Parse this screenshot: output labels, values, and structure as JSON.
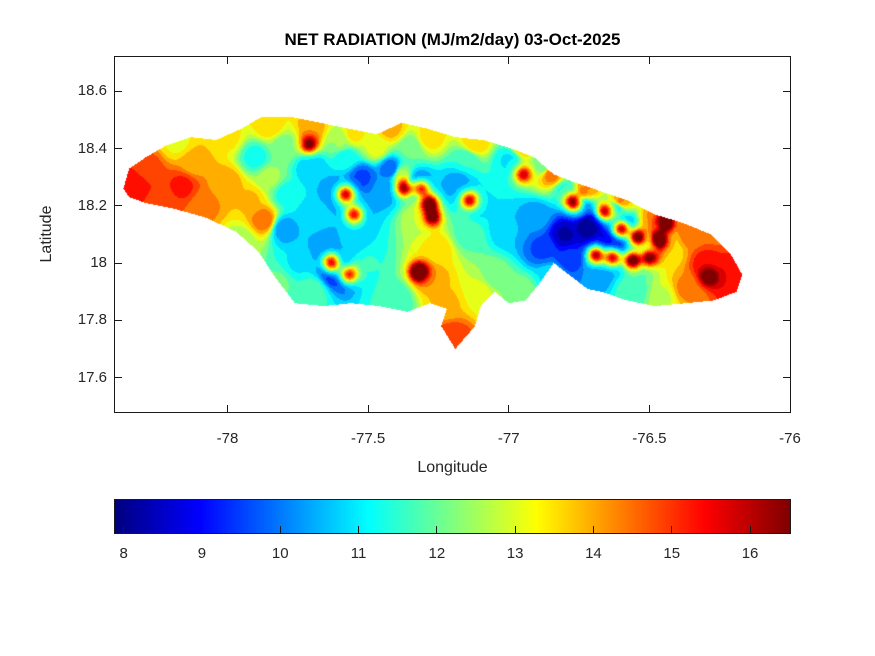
{
  "figure": {
    "background": "#ffffff",
    "axis_color": "#1a1a1a",
    "text_color": "#262626",
    "title_color": "#000000"
  },
  "chart_data": {
    "type": "heatmap",
    "subtype": "filled_contour_map",
    "region": "Jamaica",
    "title": "NET RADIATION (MJ/m2/day) 03-Oct-2025",
    "xlabel": "Longitude",
    "ylabel": "Latitude",
    "xlim": [
      -78.4,
      -76.0
    ],
    "ylim": [
      17.48,
      18.72
    ],
    "grid": false,
    "xticks": [
      {
        "value": -78,
        "label": "-78"
      },
      {
        "value": -77.5,
        "label": "-77.5"
      },
      {
        "value": -77,
        "label": "-77"
      },
      {
        "value": -76.5,
        "label": "-76.5"
      },
      {
        "value": -76,
        "label": "-76"
      }
    ],
    "yticks": [
      {
        "value": 18.6,
        "label": "18.6"
      },
      {
        "value": 18.4,
        "label": "18.4"
      },
      {
        "value": 18.2,
        "label": "18.2"
      },
      {
        "value": 18,
        "label": "18"
      },
      {
        "value": 17.8,
        "label": "17.8"
      },
      {
        "value": 17.6,
        "label": "17.6"
      }
    ],
    "colormap": "jet",
    "color_range": [
      7.89,
      16.51
    ],
    "contour_step": 0.45,
    "colorbar": {
      "orientation": "horizontal",
      "position": "below",
      "ticks": [
        {
          "value": 8,
          "label": "8"
        },
        {
          "value": 9,
          "label": "9"
        },
        {
          "value": 10,
          "label": "10"
        },
        {
          "value": 11,
          "label": "11"
        },
        {
          "value": 12,
          "label": "12"
        },
        {
          "value": 13,
          "label": "13"
        },
        {
          "value": 14,
          "label": "14"
        },
        {
          "value": 15,
          "label": "15"
        },
        {
          "value": 16,
          "label": "16"
        }
      ]
    },
    "coastline": [
      [
        -78.37,
        18.26
      ],
      [
        -78.35,
        18.33
      ],
      [
        -78.29,
        18.37
      ],
      [
        -78.22,
        18.41
      ],
      [
        -78.13,
        18.44
      ],
      [
        -78.04,
        18.43
      ],
      [
        -77.95,
        18.47
      ],
      [
        -77.88,
        18.51
      ],
      [
        -77.77,
        18.51
      ],
      [
        -77.67,
        18.49
      ],
      [
        -77.57,
        18.47
      ],
      [
        -77.47,
        18.45
      ],
      [
        -77.38,
        18.49
      ],
      [
        -77.29,
        18.47
      ],
      [
        -77.19,
        18.44
      ],
      [
        -77.09,
        18.43
      ],
      [
        -76.99,
        18.4
      ],
      [
        -76.91,
        18.37
      ],
      [
        -76.84,
        18.31
      ],
      [
        -76.76,
        18.28
      ],
      [
        -76.67,
        18.25
      ],
      [
        -76.58,
        18.22
      ],
      [
        -76.48,
        18.17
      ],
      [
        -76.38,
        18.14
      ],
      [
        -76.28,
        18.1
      ],
      [
        -76.21,
        18.03
      ],
      [
        -76.17,
        17.96
      ],
      [
        -76.19,
        17.9
      ],
      [
        -76.27,
        17.87
      ],
      [
        -76.37,
        17.86
      ],
      [
        -76.48,
        17.85
      ],
      [
        -76.58,
        17.87
      ],
      [
        -76.67,
        17.9
      ],
      [
        -76.72,
        17.91
      ],
      [
        -76.84,
        18.0
      ],
      [
        -76.89,
        17.93
      ],
      [
        -76.94,
        17.87
      ],
      [
        -77.0,
        17.86
      ],
      [
        -77.05,
        17.9
      ],
      [
        -77.1,
        17.85
      ],
      [
        -77.12,
        17.78
      ],
      [
        -77.19,
        17.7
      ],
      [
        -77.24,
        17.78
      ],
      [
        -77.22,
        17.84
      ],
      [
        -77.28,
        17.86
      ],
      [
        -77.36,
        17.83
      ],
      [
        -77.46,
        17.85
      ],
      [
        -77.56,
        17.86
      ],
      [
        -77.66,
        17.85
      ],
      [
        -77.76,
        17.86
      ],
      [
        -77.83,
        17.95
      ],
      [
        -77.89,
        18.04
      ],
      [
        -77.97,
        18.11
      ],
      [
        -78.08,
        18.16
      ],
      [
        -78.19,
        18.19
      ],
      [
        -78.29,
        18.21
      ],
      [
        -78.35,
        18.23
      ]
    ],
    "field_samples": [
      [
        -78.33,
        18.27,
        15.5
      ],
      [
        -78.28,
        18.33,
        14.8
      ],
      [
        -78.24,
        18.21,
        14.8
      ],
      [
        -78.16,
        18.27,
        15.2
      ],
      [
        -78.12,
        18.35,
        14.0
      ],
      [
        -78.18,
        18.42,
        13.2
      ],
      [
        -78.0,
        18.44,
        13.4
      ],
      [
        -78.08,
        18.2,
        14.3
      ],
      [
        -78.0,
        18.28,
        14.0
      ],
      [
        -77.92,
        18.22,
        13.8
      ],
      [
        -77.87,
        18.15,
        14.5
      ],
      [
        -77.9,
        18.37,
        11.3
      ],
      [
        -77.8,
        18.41,
        12.2
      ],
      [
        -77.85,
        18.3,
        12.5
      ],
      [
        -77.79,
        18.24,
        11.3
      ],
      [
        -77.7,
        18.33,
        10.6
      ],
      [
        -77.58,
        18.37,
        11.2
      ],
      [
        -77.52,
        18.3,
        9.6
      ],
      [
        -77.42,
        18.33,
        9.8
      ],
      [
        -77.62,
        18.25,
        10.3
      ],
      [
        -77.7,
        18.17,
        10.8
      ],
      [
        -77.8,
        18.12,
        10.3
      ],
      [
        -77.55,
        18.2,
        10.5
      ],
      [
        -77.45,
        18.26,
        10.2
      ],
      [
        -77.65,
        18.05,
        10.2
      ],
      [
        -77.55,
        18.08,
        10.8
      ],
      [
        -77.75,
        18.0,
        11.0
      ],
      [
        -77.62,
        17.97,
        9.2
      ],
      [
        -77.5,
        18.0,
        11.5
      ],
      [
        -77.7,
        17.9,
        11.8
      ],
      [
        -77.82,
        17.93,
        12.0
      ],
      [
        -77.95,
        18.08,
        12.6
      ],
      [
        -77.85,
        18.48,
        13.6
      ],
      [
        -77.7,
        18.47,
        14.0
      ],
      [
        -77.55,
        18.45,
        13.4
      ],
      [
        -77.42,
        18.47,
        13.9
      ],
      [
        -77.28,
        18.44,
        13.5
      ],
      [
        -77.12,
        18.42,
        13.7
      ],
      [
        -76.95,
        18.41,
        13.8
      ],
      [
        -76.85,
        18.31,
        14.4
      ],
      [
        -76.72,
        18.27,
        14.2
      ],
      [
        -76.6,
        18.22,
        14.2
      ],
      [
        -76.48,
        18.16,
        14.3
      ],
      [
        -77.6,
        18.42,
        12.4
      ],
      [
        -77.35,
        18.4,
        12.0
      ],
      [
        -77.15,
        18.36,
        11.5
      ],
      [
        -77.0,
        18.36,
        11.0
      ],
      [
        -76.88,
        18.34,
        12.0
      ],
      [
        -77.47,
        18.4,
        13.0
      ],
      [
        -77.38,
        18.31,
        12.4
      ],
      [
        -77.33,
        18.28,
        9.8
      ],
      [
        -77.32,
        18.16,
        12.8
      ],
      [
        -77.25,
        18.05,
        13.5
      ],
      [
        -77.28,
        17.95,
        14.1
      ],
      [
        -77.18,
        18.28,
        10.4
      ],
      [
        -77.1,
        18.2,
        11.0
      ],
      [
        -77.0,
        18.12,
        10.6
      ],
      [
        -77.15,
        18.1,
        11.8
      ],
      [
        -77.05,
        17.95,
        12.2
      ],
      [
        -76.95,
        17.9,
        12.2
      ],
      [
        -77.2,
        17.74,
        15.0
      ],
      [
        -77.22,
        17.86,
        13.8
      ],
      [
        -77.1,
        17.9,
        13.0
      ],
      [
        -77.4,
        17.87,
        11.6
      ],
      [
        -76.88,
        18.05,
        9.6
      ],
      [
        -76.8,
        18.1,
        8.3
      ],
      [
        -76.72,
        18.13,
        8.1
      ],
      [
        -76.64,
        18.07,
        8.7
      ],
      [
        -76.78,
        18.02,
        9.3
      ],
      [
        -76.9,
        18.16,
        10.3
      ],
      [
        -76.75,
        18.19,
        9.7
      ],
      [
        -76.8,
        18.25,
        11.4
      ],
      [
        -76.62,
        18.19,
        11.0
      ],
      [
        -76.85,
        17.95,
        11.0
      ],
      [
        -76.7,
        17.97,
        10.2
      ],
      [
        -76.6,
        18.13,
        9.3
      ],
      [
        -76.52,
        18.06,
        10.2
      ],
      [
        -76.55,
        17.9,
        11.8
      ],
      [
        -76.45,
        17.88,
        12.8
      ],
      [
        -76.45,
        18.13,
        13.2
      ],
      [
        -76.42,
        18.04,
        13.6
      ],
      [
        -76.35,
        18.1,
        14.5
      ],
      [
        -76.3,
        18.0,
        15.3
      ],
      [
        -76.22,
        17.95,
        15.5
      ],
      [
        -76.27,
        18.13,
        14.3
      ],
      [
        -76.37,
        17.91,
        14.3
      ]
    ],
    "hotspots": [
      [
        -77.71,
        18.41,
        4.0
      ],
      [
        -77.58,
        18.24,
        5.5
      ],
      [
        -77.55,
        18.17,
        5.0
      ],
      [
        -77.37,
        18.26,
        5.5
      ],
      [
        -77.31,
        18.26,
        5.0
      ],
      [
        -77.28,
        18.21,
        5.5
      ],
      [
        -77.27,
        18.16,
        4.5
      ],
      [
        -77.14,
        18.22,
        5.0
      ],
      [
        -77.32,
        17.97,
        5.5
      ],
      [
        -77.63,
        18.0,
        6.2
      ],
      [
        -77.57,
        17.96,
        5.5
      ],
      [
        -76.95,
        18.31,
        4.0
      ],
      [
        -76.77,
        18.21,
        6.5
      ],
      [
        -76.66,
        18.18,
        5.0
      ],
      [
        -76.6,
        18.12,
        6.5
      ],
      [
        -76.54,
        18.09,
        7.0
      ],
      [
        -76.47,
        18.08,
        6.0
      ],
      [
        -76.69,
        18.03,
        6.5
      ],
      [
        -76.63,
        18.02,
        6.5
      ],
      [
        -76.56,
        18.01,
        7.0
      ],
      [
        -76.5,
        18.02,
        6.2
      ],
      [
        -76.44,
        18.14,
        5.0
      ],
      [
        -76.29,
        17.95,
        2.5
      ]
    ],
    "hotspot_sigma": 0.022
  }
}
